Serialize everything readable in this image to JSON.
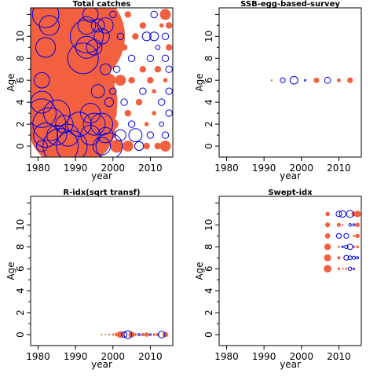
{
  "colors": {
    "positive": "#f2603f",
    "negative": "#0000e6"
  },
  "chart_data": [
    {
      "type": "scatter",
      "title": "Total catches",
      "xlabel": "year",
      "ylabel": "Age",
      "xlim": [
        1978,
        2016
      ],
      "ylim": [
        -1,
        12.6
      ],
      "xticks": [
        1980,
        1990,
        2000,
        2010
      ],
      "yticks": [
        0,
        2,
        4,
        6,
        8,
        10
      ],
      "grid": false,
      "points": [
        [
          1984,
          10,
          4.5,
          "p"
        ],
        [
          1986,
          7,
          4.5,
          "p"
        ],
        [
          1988,
          4,
          4.5,
          "p"
        ],
        [
          1990,
          10,
          4.5,
          "p"
        ],
        [
          1989,
          2,
          4.0,
          "p"
        ],
        [
          1982,
          12,
          1.2,
          "n"
        ],
        [
          1983,
          11,
          0.9,
          "n"
        ],
        [
          1982,
          9,
          0.9,
          "n"
        ],
        [
          1981,
          6,
          0.7,
          "n"
        ],
        [
          1981,
          4,
          1.0,
          "n"
        ],
        [
          1981,
          3,
          1.3,
          "n"
        ],
        [
          1983,
          2,
          1.5,
          "n"
        ],
        [
          1982,
          1,
          1.1,
          "n"
        ],
        [
          1985,
          3,
          1.2,
          "n"
        ],
        [
          1986,
          0,
          1.6,
          "n"
        ],
        [
          1988,
          1,
          1.0,
          "n"
        ],
        [
          1989,
          0,
          1.4,
          "n"
        ],
        [
          1985,
          1,
          0.9,
          "n"
        ],
        [
          1981,
          0,
          0.5,
          "n"
        ],
        [
          1987,
          2,
          0.8,
          "n"
        ],
        [
          1991,
          2,
          1.1,
          "n"
        ],
        [
          1992,
          8,
          1.4,
          "n"
        ],
        [
          1993,
          10,
          1.5,
          "n"
        ],
        [
          1993,
          9,
          1.0,
          "n"
        ],
        [
          1993,
          11,
          0.8,
          "n"
        ],
        [
          1994,
          12,
          0.7,
          "n"
        ],
        [
          1994,
          3,
          0.9,
          "n"
        ],
        [
          1994,
          1,
          0.9,
          "n"
        ],
        [
          1995,
          2,
          1.0,
          "n"
        ],
        [
          1995,
          9,
          0.7,
          "n"
        ],
        [
          1996,
          11,
          0.6,
          "n"
        ],
        [
          1996,
          5,
          0.6,
          "n"
        ],
        [
          1997,
          2,
          1.0,
          "n"
        ],
        [
          1997,
          0,
          0.8,
          "n"
        ],
        [
          1998,
          7,
          0.5,
          "n"
        ],
        [
          1998,
          1,
          0.7,
          "n"
        ],
        [
          1999,
          0,
          1.2,
          "n"
        ],
        [
          1998,
          11,
          0.7,
          "n"
        ],
        [
          1997,
          10,
          0.7,
          "n"
        ],
        [
          1999,
          4,
          0.4,
          "n"
        ],
        [
          1996,
          6,
          0.5,
          "p"
        ],
        [
          1997,
          7,
          0.6,
          "p"
        ],
        [
          1996,
          8,
          0.6,
          "p"
        ],
        [
          1997,
          4,
          0.5,
          "p"
        ],
        [
          1998,
          5,
          0.7,
          "p"
        ],
        [
          1998,
          9,
          0.5,
          "p"
        ],
        [
          1999,
          6,
          0.6,
          "p"
        ],
        [
          1999,
          3,
          0.7,
          "p"
        ],
        [
          2000,
          2,
          0.5,
          "p"
        ],
        [
          2000,
          8,
          0.4,
          "p"
        ],
        [
          2000,
          12,
          0.3,
          "n"
        ],
        [
          2000,
          5,
          0.3,
          "n"
        ],
        [
          2000,
          1,
          0.3,
          "p"
        ],
        [
          2001,
          0,
          0.6,
          "p"
        ],
        [
          2001,
          7,
          0.3,
          "n"
        ],
        [
          2002,
          6,
          0.5,
          "p"
        ],
        [
          2002,
          10,
          0.3,
          "n"
        ],
        [
          2002,
          1,
          0.5,
          "n"
        ],
        [
          2003,
          4,
          0.3,
          "n"
        ],
        [
          2003,
          9,
          0.3,
          "p"
        ],
        [
          2004,
          0,
          0.5,
          "p"
        ],
        [
          2004,
          12,
          0.3,
          "p"
        ],
        [
          2004,
          3,
          0.3,
          "p"
        ],
        [
          2005,
          8,
          0.3,
          "n"
        ],
        [
          2005,
          6,
          0.3,
          "p"
        ],
        [
          2005,
          2,
          0.3,
          "n"
        ],
        [
          2006,
          1,
          0.6,
          "n"
        ],
        [
          2006,
          10,
          0.3,
          "p"
        ],
        [
          2007,
          4,
          0.3,
          "p"
        ],
        [
          2007,
          0,
          0.4,
          "n"
        ],
        [
          2008,
          7,
          0.3,
          "p"
        ],
        [
          2008,
          5,
          0.3,
          "n"
        ],
        [
          2008,
          11,
          0.3,
          "p"
        ],
        [
          2009,
          10,
          0.4,
          "n"
        ],
        [
          2009,
          2,
          0.2,
          "p"
        ],
        [
          2009,
          0,
          0.3,
          "p"
        ],
        [
          2010,
          8,
          0.3,
          "n"
        ],
        [
          2010,
          6,
          0.3,
          "p"
        ],
        [
          2010,
          1,
          0.3,
          "n"
        ],
        [
          2011,
          3,
          0.2,
          "p"
        ],
        [
          2011,
          12,
          0.3,
          "n"
        ],
        [
          2011,
          10,
          0.4,
          "n"
        ],
        [
          2011,
          5,
          0.2,
          "p"
        ],
        [
          2012,
          7,
          0.3,
          "p"
        ],
        [
          2012,
          9,
          0.2,
          "n"
        ],
        [
          2012,
          0,
          0.3,
          "p"
        ],
        [
          2013,
          11,
          0.2,
          "p"
        ],
        [
          2013,
          4,
          0.3,
          "n"
        ],
        [
          2013,
          2,
          0.2,
          "n"
        ],
        [
          2014,
          12,
          0.5,
          "p"
        ],
        [
          2014,
          10,
          0.3,
          "n"
        ],
        [
          2014,
          8,
          0.3,
          "n"
        ],
        [
          2014,
          6,
          0.2,
          "p"
        ],
        [
          2014,
          1,
          0.3,
          "n"
        ],
        [
          2014,
          0,
          0.5,
          "p"
        ],
        [
          2015,
          11,
          0.3,
          "p"
        ],
        [
          2015,
          9,
          0.3,
          "p"
        ],
        [
          2015,
          7,
          0.3,
          "n"
        ],
        [
          2015,
          5,
          0.3,
          "n"
        ],
        [
          2015,
          3,
          0.3,
          "n"
        ]
      ]
    },
    {
      "type": "scatter",
      "title": "SSB-egg-based-survey",
      "xlabel": "year",
      "ylabel": "Age",
      "xlim": [
        1978,
        2016
      ],
      "ylim": [
        -1,
        12.6
      ],
      "xticks": [
        1980,
        1990,
        2000,
        2010
      ],
      "yticks": [
        0,
        2,
        4,
        6,
        8,
        10
      ],
      "grid": false,
      "points": [
        [
          1992,
          6,
          0.08,
          "p"
        ],
        [
          1995,
          6,
          0.22,
          "n"
        ],
        [
          1998,
          6,
          0.35,
          "n"
        ],
        [
          2001,
          6,
          0.05,
          "n"
        ],
        [
          2004,
          6,
          0.25,
          "p"
        ],
        [
          2007,
          6,
          0.28,
          "n"
        ],
        [
          2010,
          6,
          0.18,
          "p"
        ],
        [
          2013,
          6,
          0.26,
          "p"
        ]
      ]
    },
    {
      "type": "scatter",
      "title": "R-idx(sqrt transf)",
      "xlabel": "year",
      "ylabel": "Age",
      "xlim": [
        1978,
        2016
      ],
      "ylim": [
        -1,
        12.6
      ],
      "xticks": [
        1980,
        1990,
        2000,
        2010
      ],
      "yticks": [
        0,
        2,
        4,
        6,
        8,
        10
      ],
      "grid": false,
      "points": [
        [
          1997,
          0,
          0.05,
          "p"
        ],
        [
          1998,
          0,
          0.07,
          "p"
        ],
        [
          1999,
          0,
          0.08,
          "p"
        ],
        [
          2000,
          0,
          0.1,
          "p"
        ],
        [
          2001,
          0,
          0.18,
          "p"
        ],
        [
          2002,
          0,
          0.3,
          "p"
        ],
        [
          2003,
          0,
          0.25,
          "n"
        ],
        [
          2004,
          0,
          0.35,
          "n"
        ],
        [
          2005,
          0,
          0.28,
          "p"
        ],
        [
          2006,
          0,
          0.12,
          "p"
        ],
        [
          2007,
          0,
          0.1,
          "n"
        ],
        [
          2008,
          0,
          0.15,
          "p"
        ],
        [
          2009,
          0,
          0.2,
          "p"
        ],
        [
          2010,
          0,
          0.08,
          "n"
        ],
        [
          2011,
          0,
          0.12,
          "p"
        ],
        [
          2012,
          0,
          0.15,
          "p"
        ],
        [
          2013,
          0,
          0.3,
          "n"
        ],
        [
          2014,
          0,
          0.25,
          "p"
        ]
      ]
    },
    {
      "type": "scatter",
      "title": "Swept-idx",
      "xlabel": "year",
      "ylabel": "Age",
      "xlim": [
        1978,
        2016
      ],
      "ylim": [
        -1,
        12.6
      ],
      "xticks": [
        1980,
        1990,
        2000,
        2010
      ],
      "yticks": [
        0,
        2,
        4,
        6,
        8,
        10
      ],
      "grid": false,
      "points": [
        [
          2007,
          11,
          0.2,
          "p"
        ],
        [
          2007,
          10,
          0.22,
          "p"
        ],
        [
          2007,
          9,
          0.24,
          "p"
        ],
        [
          2007,
          8,
          0.3,
          "p"
        ],
        [
          2007,
          7,
          0.32,
          "p"
        ],
        [
          2007,
          6,
          0.34,
          "p"
        ],
        [
          2010,
          11,
          0.25,
          "n"
        ],
        [
          2010,
          10,
          0.18,
          "p"
        ],
        [
          2010,
          9,
          0.22,
          "n"
        ],
        [
          2010,
          8,
          0.1,
          "p"
        ],
        [
          2010,
          7,
          0.14,
          "p"
        ],
        [
          2010,
          6,
          0.12,
          "p"
        ],
        [
          2011,
          11,
          0.3,
          "n"
        ],
        [
          2011,
          10,
          0.08,
          "p"
        ],
        [
          2011,
          8,
          0.08,
          "n"
        ],
        [
          2011,
          6,
          0.08,
          "p"
        ],
        [
          2012,
          9,
          0.22,
          "n"
        ],
        [
          2012,
          8,
          0.16,
          "n"
        ],
        [
          2012,
          7,
          0.22,
          "n"
        ],
        [
          2012,
          6,
          0.1,
          "p"
        ],
        [
          2013,
          11,
          0.32,
          "n"
        ],
        [
          2013,
          10,
          0.12,
          "n"
        ],
        [
          2013,
          8,
          0.24,
          "n"
        ],
        [
          2013,
          7,
          0.18,
          "n"
        ],
        [
          2013,
          6,
          0.16,
          "n"
        ],
        [
          2014,
          11,
          0.22,
          "p"
        ],
        [
          2014,
          10,
          0.1,
          "n"
        ],
        [
          2014,
          9,
          0.1,
          "p"
        ],
        [
          2014,
          8,
          0.12,
          "p"
        ],
        [
          2014,
          7,
          0.15,
          "n"
        ],
        [
          2014,
          6,
          0.04,
          "n"
        ],
        [
          2015,
          11,
          0.3,
          "p"
        ],
        [
          2015,
          10,
          0.2,
          "p"
        ],
        [
          2015,
          9,
          0.2,
          "p"
        ],
        [
          2015,
          8,
          0.12,
          "p"
        ],
        [
          2015,
          7,
          0.1,
          "n"
        ]
      ]
    }
  ]
}
